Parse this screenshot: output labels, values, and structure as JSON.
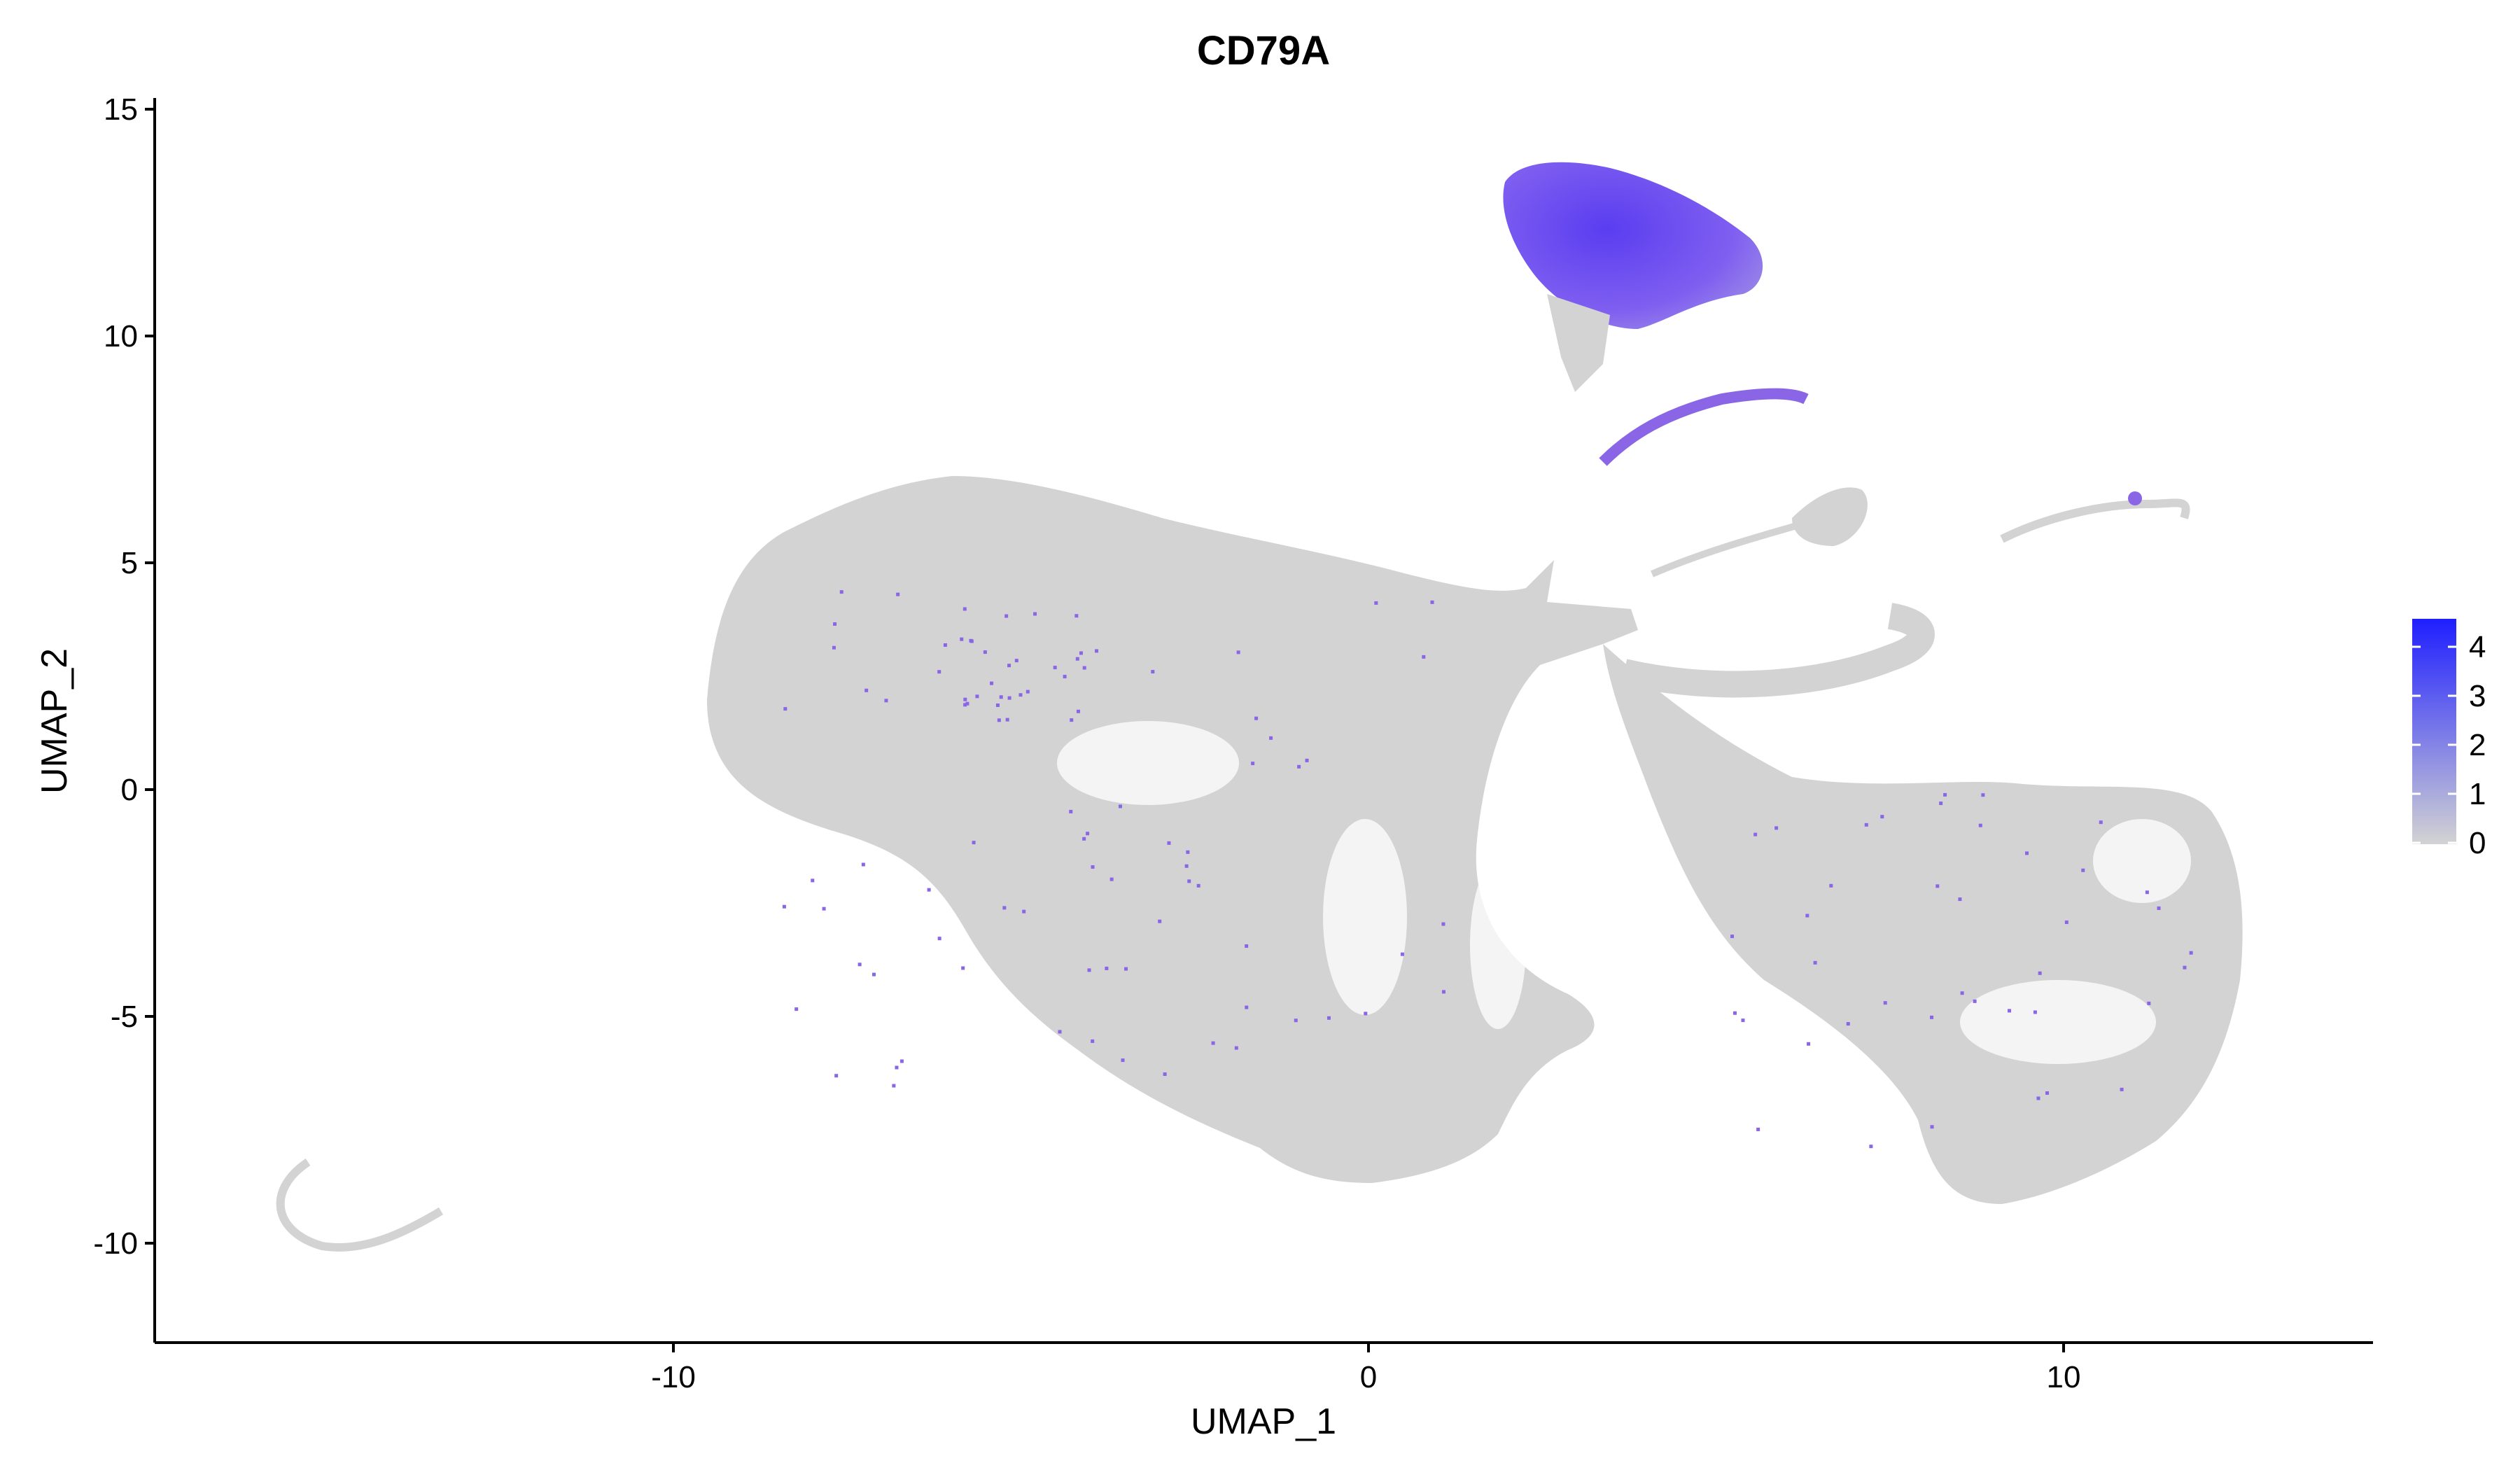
{
  "chart_data": {
    "type": "scatter",
    "title": "CD79A",
    "xlabel": "UMAP_1",
    "ylabel": "UMAP_2",
    "xlim": [
      -17.5,
      14.4
    ],
    "ylim": [
      -12.2,
      15.3
    ],
    "x_ticks": [
      -10,
      0,
      10
    ],
    "y_ticks": [
      -10,
      -5,
      0,
      5,
      10,
      15
    ],
    "grid": false,
    "legend": {
      "type": "colorbar",
      "position": "right",
      "ticks": [
        0,
        1,
        2,
        3,
        4
      ],
      "low_color": "#d3d3d3",
      "high_color": "#1f1fff"
    },
    "colors": {
      "no_expression": "#d3d3d3",
      "mid_expression": "#8a66e6",
      "high_expression": "#3a2cf0"
    },
    "clusters": [
      {
        "region": "large-left-body",
        "center": [
          -3.5,
          0.0
        ],
        "expression": 0
      },
      {
        "region": "center-lobe",
        "center": [
          0.5,
          -5.0
        ],
        "expression": 0
      },
      {
        "region": "right-body",
        "center": [
          9.5,
          -4.0
        ],
        "expression": 0
      },
      {
        "region": "top-b-cell-cluster",
        "center": [
          3.5,
          12.2
        ],
        "expression": 3.5
      },
      {
        "region": "middle-arc",
        "center": [
          5.2,
          8.2
        ],
        "expression": 3.0
      },
      {
        "region": "small-far-right",
        "center": [
          11.0,
          6.1
        ],
        "expression": 1.5
      },
      {
        "region": "far-left-arc",
        "center": [
          -14.8,
          -9.7
        ],
        "expression": 0
      }
    ]
  }
}
